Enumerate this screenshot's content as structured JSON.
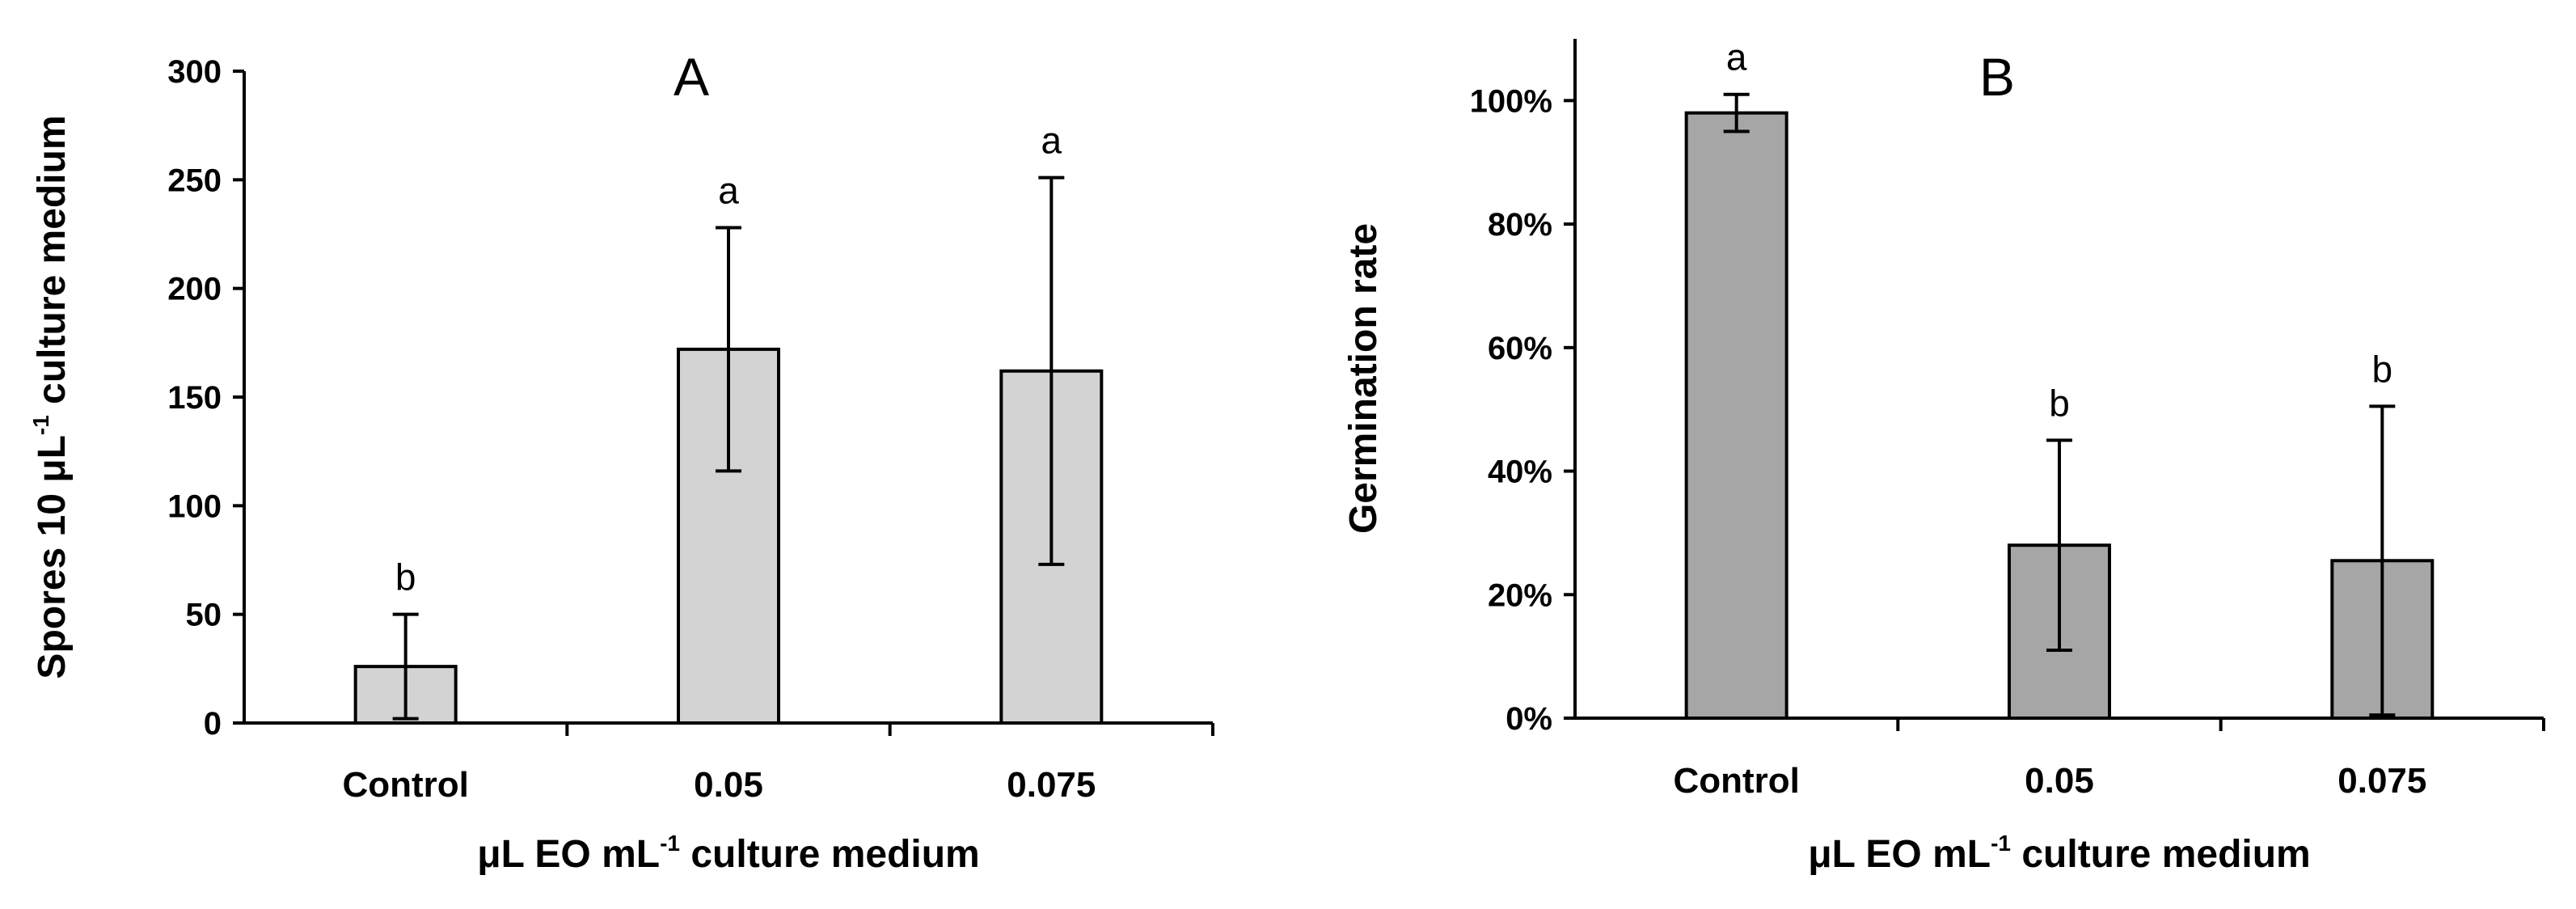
{
  "colors": {
    "panel_a_bar": "#d3d3d3",
    "panel_b_bar": "#a6a6a6",
    "outline": "#000000"
  },
  "chart_data": [
    {
      "type": "bar",
      "panel_label": "A",
      "categories": [
        "Control",
        "0.05",
        "0.075"
      ],
      "values": [
        26,
        172,
        162
      ],
      "error": [
        24,
        56,
        89
      ],
      "significance": [
        "b",
        "a",
        "a"
      ],
      "xlabel": {
        "prefix": "μL EO mL",
        "sup": "-1",
        "suffix": " culture medium"
      },
      "ylabel": {
        "prefix": "Spores 10 μL",
        "sup": "-1",
        "suffix": " culture medium"
      },
      "ylim": [
        0,
        300
      ],
      "yticks": [
        0,
        50,
        100,
        150,
        200,
        250,
        300
      ],
      "ytick_labels": [
        "0",
        "50",
        "100",
        "150",
        "200",
        "250",
        "300"
      ],
      "grid": false,
      "legend": "none"
    },
    {
      "type": "bar",
      "panel_label": "B",
      "categories": [
        "Control",
        "0.05",
        "0.075"
      ],
      "values": [
        98,
        28,
        25.5
      ],
      "error": [
        3,
        17,
        25
      ],
      "significance": [
        "a",
        "b",
        "b"
      ],
      "xlabel": {
        "prefix": "μL EO mL",
        "sup": "-1",
        "suffix": " culture medium"
      },
      "ylabel": {
        "prefix": "Germination rate",
        "sup": "",
        "suffix": ""
      },
      "ylim": [
        0,
        110
      ],
      "yticks": [
        0,
        20,
        40,
        60,
        80,
        100
      ],
      "ytick_labels": [
        "0%",
        "20%",
        "40%",
        "60%",
        "80%",
        "100%"
      ],
      "grid": false,
      "legend": "none"
    }
  ]
}
